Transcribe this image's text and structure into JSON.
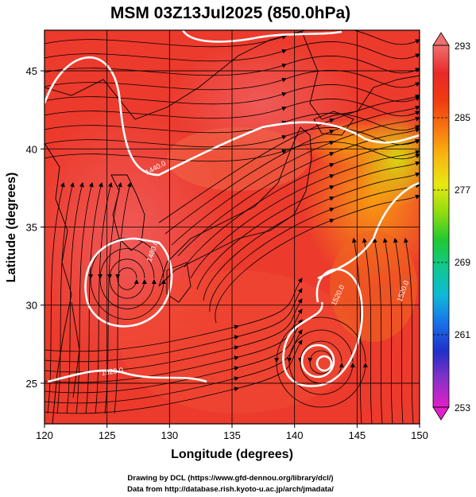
{
  "chart_data": {
    "type": "heatmap",
    "title": "MSM 03Z13Jul2025 (850.0hPa)",
    "xlabel": "Longitude (degrees)",
    "ylabel": "Latitude  (degrees)",
    "xlim": [
      120,
      150
    ],
    "ylim": [
      22.4,
      47.6
    ],
    "xticks": [
      120,
      125,
      130,
      135,
      140,
      145,
      150
    ],
    "yticks": [
      25,
      30,
      35,
      40,
      45
    ],
    "grid": true,
    "colorbar": {
      "min": 253,
      "max": 293,
      "ticks": [
        253,
        261,
        269,
        277,
        285,
        293
      ],
      "colors": [
        "#e020c8",
        "#8a30c8",
        "#2030c8",
        "#1870e8",
        "#10b8d8",
        "#10c890",
        "#20c830",
        "#90dc10",
        "#e8e810",
        "#f8b810",
        "#f87810",
        "#f03c10",
        "#e82828",
        "#f07070"
      ]
    },
    "contours": {
      "color": "#ffffff",
      "labels": [
        "1440.0",
        "1480.0",
        "1520.0",
        "1520.0",
        "1520.0"
      ]
    }
  },
  "credits": {
    "line1": "Drawing by DCL (https://www.gfd-dennou.org/library/dcl/)",
    "line2": "Data from http://database.rish.kyoto-u.ac.jp/arch/jmadata/"
  }
}
